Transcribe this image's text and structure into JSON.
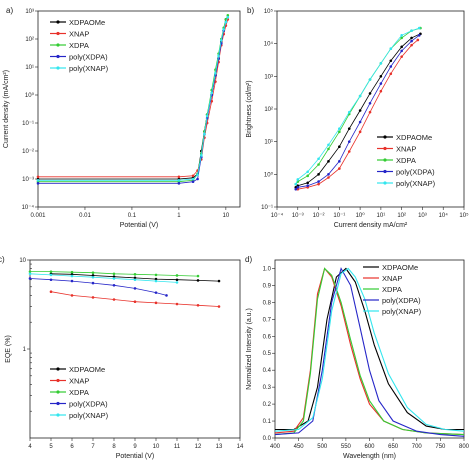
{
  "series_colors": {
    "XDPAOMe": "#000000",
    "XNAP": "#e8322b",
    "XDPA": "#33cc33",
    "poly(XDPA)": "#2626c8",
    "poly(XNAP)": "#33e6ee"
  },
  "chart_data": [
    {
      "panel_label": "a)",
      "type": "line",
      "xlabel": "Potential (V)",
      "ylabel": "Current density (mA/cm²)",
      "xscale": "log",
      "yscale": "log",
      "xlim": [
        0.001,
        20
      ],
      "ylim": [
        0.0001,
        1000
      ],
      "xticks": [
        "0.001",
        "0.01",
        "0.1",
        "1",
        "10"
      ],
      "yticks": [
        "10⁻⁴",
        "10⁻³",
        "10⁻²",
        "10⁻¹",
        "10⁰",
        "10¹",
        "10²",
        "10³"
      ],
      "legend_position": "top-left",
      "series": [
        {
          "name": "XDPAOMe",
          "x": [
            0.001,
            1,
            2,
            2.5,
            3,
            3.5,
            4,
            5,
            6,
            7,
            8,
            9,
            10
          ],
          "y": [
            0.001,
            0.001,
            0.0011,
            0.0015,
            0.01,
            0.05,
            0.2,
            1,
            5,
            20,
            80,
            200,
            500
          ]
        },
        {
          "name": "XNAP",
          "x": [
            0.001,
            1,
            2,
            2.5,
            3,
            3.5,
            4,
            5,
            6,
            7,
            8,
            9,
            10,
            11
          ],
          "y": [
            0.0012,
            0.0012,
            0.0013,
            0.002,
            0.005,
            0.03,
            0.1,
            0.6,
            3,
            15,
            60,
            150,
            300,
            500
          ]
        },
        {
          "name": "XDPA",
          "x": [
            0.001,
            1,
            2,
            2.5,
            3,
            3.5,
            4,
            5,
            6,
            7,
            8,
            9,
            10,
            11
          ],
          "y": [
            0.0008,
            0.0008,
            0.0009,
            0.0015,
            0.008,
            0.05,
            0.2,
            1.5,
            8,
            30,
            100,
            250,
            500,
            700
          ]
        },
        {
          "name": "poly(XDPA)",
          "x": [
            0.001,
            1,
            2,
            2.5,
            3,
            3.5,
            4,
            5,
            6,
            7,
            8,
            9,
            10
          ],
          "y": [
            0.0007,
            0.0007,
            0.0008,
            0.001,
            0.006,
            0.04,
            0.15,
            1,
            5,
            20,
            70,
            200,
            400
          ]
        },
        {
          "name": "poly(XNAP)",
          "x": [
            0.001,
            1,
            2,
            2.5,
            3,
            3.5,
            4,
            5,
            6,
            7,
            8,
            9,
            10,
            11
          ],
          "y": [
            0.0009,
            0.0009,
            0.001,
            0.0014,
            0.007,
            0.04,
            0.18,
            1.2,
            6,
            25,
            90,
            220,
            400,
            600
          ]
        }
      ]
    },
    {
      "panel_label": "b)",
      "type": "line",
      "xlabel": "Current density mA/cm²",
      "ylabel": "Brightness (cd/m²)",
      "xscale": "log",
      "yscale": "log",
      "xlim": [
        0.0001,
        100000
      ],
      "ylim": [
        0.1,
        100000
      ],
      "xticks": [
        "10⁻⁴",
        "10⁻³",
        "10⁻²",
        "10⁻¹",
        "10⁰",
        "10¹",
        "10²",
        "10³",
        "10⁴",
        "10⁵"
      ],
      "yticks": [
        "10⁻¹",
        "10⁰",
        "10¹",
        "10²",
        "10³",
        "10⁴",
        "10⁵"
      ],
      "legend_position": "bottom-right",
      "series": [
        {
          "name": "XDPAOMe",
          "x": [
            0.0008,
            0.001,
            0.003,
            0.01,
            0.03,
            0.1,
            0.3,
            1,
            3,
            10,
            30,
            100,
            300,
            800
          ],
          "y": [
            0.4,
            0.45,
            0.55,
            1,
            2.5,
            7,
            25,
            90,
            300,
            1000,
            3000,
            8000,
            15000,
            20000
          ]
        },
        {
          "name": "XNAP",
          "x": [
            0.001,
            0.003,
            0.01,
            0.03,
            0.1,
            0.3,
            1,
            3,
            10,
            30,
            100,
            300,
            600
          ],
          "y": [
            0.35,
            0.4,
            0.5,
            0.8,
            1.5,
            5,
            20,
            80,
            350,
            1200,
            4000,
            9000,
            13000
          ]
        },
        {
          "name": "XDPA",
          "x": [
            0.0008,
            0.001,
            0.003,
            0.01,
            0.03,
            0.1,
            0.3,
            1,
            3,
            10,
            30,
            100,
            300,
            800
          ],
          "y": [
            0.5,
            0.6,
            0.9,
            2,
            6,
            20,
            70,
            250,
            800,
            2500,
            7000,
            15000,
            25000,
            30000
          ]
        },
        {
          "name": "poly(XDPA)",
          "x": [
            0.0008,
            0.001,
            0.003,
            0.01,
            0.03,
            0.1,
            0.3,
            1,
            3,
            10,
            30,
            100,
            300,
            700
          ],
          "y": [
            0.35,
            0.4,
            0.45,
            0.6,
            1,
            2.5,
            10,
            40,
            150,
            600,
            2000,
            6000,
            12000,
            18000
          ]
        },
        {
          "name": "poly(XNAP)",
          "x": [
            0.0008,
            0.001,
            0.003,
            0.01,
            0.03,
            0.1,
            0.3,
            1,
            3,
            10,
            30,
            100,
            300,
            700
          ],
          "y": [
            0.5,
            0.7,
            1.2,
            3,
            8,
            25,
            80,
            250,
            800,
            2500,
            7000,
            18000,
            25000,
            30000
          ]
        }
      ]
    },
    {
      "panel_label": "c)",
      "type": "line",
      "xlabel": "Potential (V)",
      "ylabel": "EQE (%)",
      "xscale": "linear",
      "yscale": "log",
      "xlim": [
        4,
        14
      ],
      "ylim": [
        0.1,
        10
      ],
      "xticks": [
        "4",
        "5",
        "6",
        "7",
        "8",
        "9",
        "10",
        "11",
        "12",
        "13",
        "14"
      ],
      "yticks": [
        "1",
        "10"
      ],
      "legend_position": "bottom-right",
      "series": [
        {
          "name": "XDPAOMe",
          "x": [
            5,
            6,
            7,
            8,
            9,
            10,
            11,
            12,
            13
          ],
          "y": [
            7.0,
            6.9,
            6.7,
            6.5,
            6.3,
            6.1,
            6.0,
            5.9,
            5.8
          ]
        },
        {
          "name": "XNAP",
          "x": [
            5,
            6,
            7,
            8,
            9,
            10,
            11,
            12,
            13
          ],
          "y": [
            4.4,
            4.0,
            3.8,
            3.6,
            3.4,
            3.3,
            3.2,
            3.1,
            3.0
          ]
        },
        {
          "name": "XDPA",
          "x": [
            4,
            5,
            6,
            7,
            8,
            9,
            10,
            11,
            12
          ],
          "y": [
            7.4,
            7.4,
            7.3,
            7.2,
            7.0,
            6.9,
            6.8,
            6.7,
            6.6
          ]
        },
        {
          "name": "poly(XDPA)",
          "x": [
            4,
            5,
            6,
            7,
            8,
            9,
            10,
            10.5
          ],
          "y": [
            6.2,
            6.0,
            5.8,
            5.5,
            5.2,
            4.8,
            4.3,
            4.0
          ]
        },
        {
          "name": "poly(XNAP)",
          "x": [
            4,
            5,
            6,
            7,
            8,
            9,
            10,
            11
          ],
          "y": [
            7.0,
            6.8,
            6.6,
            6.4,
            6.2,
            6.0,
            5.8,
            5.6
          ]
        }
      ]
    },
    {
      "panel_label": "d)",
      "type": "line",
      "xlabel": "Wavelength (nm)",
      "ylabel": "Normalized Intensity (a.u.)",
      "xscale": "linear",
      "yscale": "linear",
      "xlim": [
        400,
        800
      ],
      "ylim": [
        0,
        1.05
      ],
      "xticks": [
        "400",
        "450",
        "500",
        "550",
        "600",
        "650",
        "700",
        "750",
        "800"
      ],
      "yticks": [
        "0.0",
        "0.1",
        "0.2",
        "0.3",
        "0.4",
        "0.5",
        "0.6",
        "0.7",
        "0.8",
        "0.9",
        "1.0"
      ],
      "legend_position": "top-right",
      "series": [
        {
          "name": "XDPAOMe",
          "x": [
            400,
            440,
            470,
            490,
            510,
            530,
            550,
            570,
            590,
            610,
            640,
            680,
            720,
            760,
            800
          ],
          "y": [
            0.05,
            0.05,
            0.1,
            0.3,
            0.7,
            0.95,
            1.0,
            0.92,
            0.75,
            0.55,
            0.32,
            0.15,
            0.07,
            0.05,
            0.05
          ]
        },
        {
          "name": "XNAP",
          "x": [
            400,
            440,
            460,
            475,
            490,
            505,
            520,
            540,
            560,
            580,
            600,
            630,
            670,
            720,
            800
          ],
          "y": [
            0.03,
            0.04,
            0.12,
            0.4,
            0.85,
            1.0,
            0.95,
            0.78,
            0.55,
            0.35,
            0.2,
            0.1,
            0.05,
            0.03,
            0.02
          ]
        },
        {
          "name": "XDPA",
          "x": [
            400,
            440,
            460,
            475,
            490,
            505,
            520,
            540,
            560,
            580,
            600,
            630,
            670,
            720,
            800
          ],
          "y": [
            0.02,
            0.03,
            0.1,
            0.38,
            0.82,
            1.0,
            0.96,
            0.8,
            0.58,
            0.37,
            0.22,
            0.1,
            0.05,
            0.03,
            0.02
          ]
        },
        {
          "name": "poly(XDPA)",
          "x": [
            400,
            450,
            480,
            500,
            520,
            540,
            560,
            580,
            600,
            620,
            650,
            700,
            750,
            800
          ],
          "y": [
            0.02,
            0.03,
            0.1,
            0.4,
            0.8,
            1.0,
            0.9,
            0.65,
            0.4,
            0.22,
            0.1,
            0.04,
            0.02,
            0.01
          ]
        },
        {
          "name": "poly(XNAP)",
          "x": [
            400,
            450,
            480,
            500,
            520,
            540,
            555,
            570,
            590,
            610,
            640,
            680,
            720,
            760,
            800
          ],
          "y": [
            0.04,
            0.05,
            0.12,
            0.35,
            0.75,
            0.97,
            1.0,
            0.95,
            0.82,
            0.62,
            0.38,
            0.18,
            0.08,
            0.05,
            0.04
          ]
        }
      ]
    }
  ]
}
